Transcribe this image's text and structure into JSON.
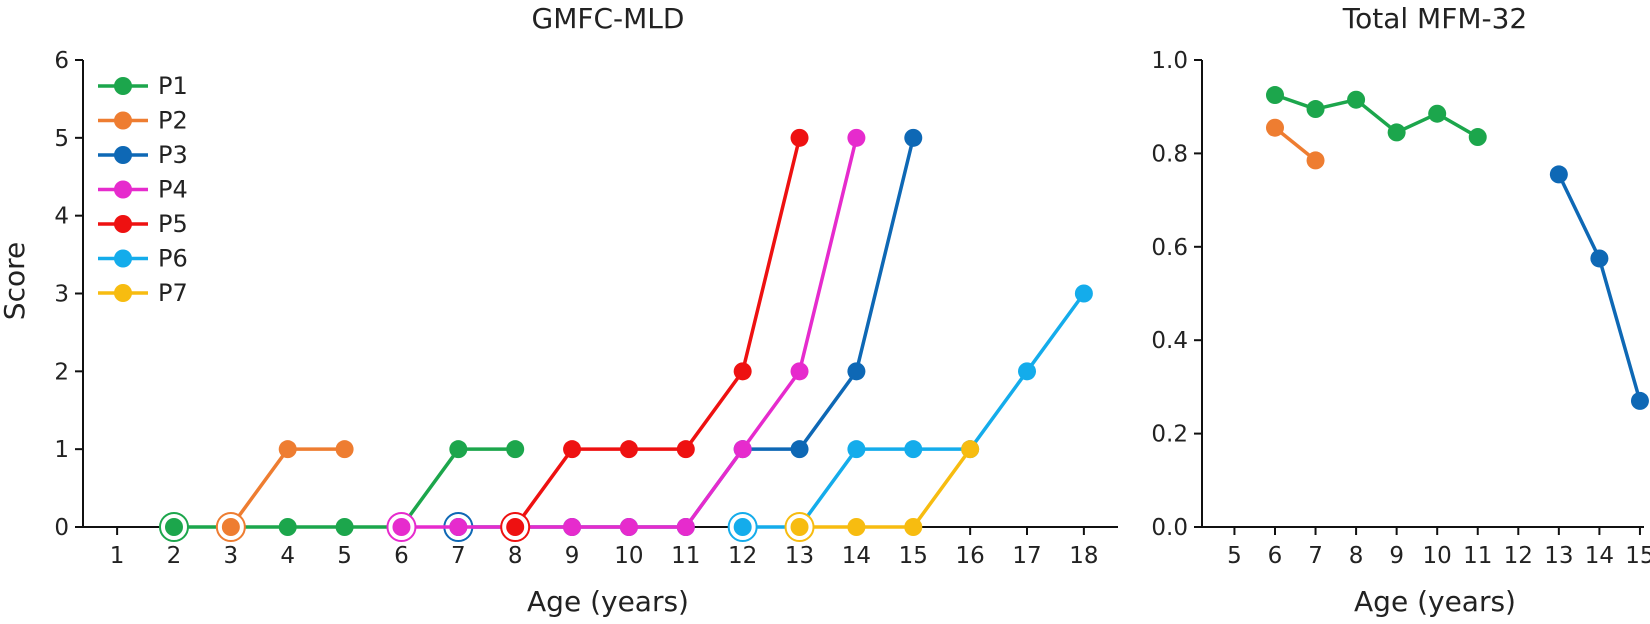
{
  "chart_data": [
    {
      "type": "line",
      "title": "GMFC-MLD",
      "xlabel": "Age (years)",
      "ylabel": "Score",
      "xlim": [
        0.4,
        18.6
      ],
      "ylim": [
        0,
        6
      ],
      "xticks": [
        1,
        2,
        3,
        4,
        5,
        6,
        7,
        8,
        9,
        10,
        11,
        12,
        13,
        14,
        15,
        16,
        17,
        18
      ],
      "yticks": [
        0,
        1,
        2,
        3,
        4,
        5,
        6
      ],
      "legend_position": "top-left",
      "grid": false,
      "series": [
        {
          "name": "P1",
          "color": "#1ca64c",
          "x": [
            2,
            4,
            5,
            6,
            7,
            8
          ],
          "y": [
            0,
            0,
            0,
            0,
            1,
            1
          ],
          "ring": [
            2,
            0
          ]
        },
        {
          "name": "P2",
          "color": "#ee7d31",
          "x": [
            3,
            4,
            5
          ],
          "y": [
            0,
            1,
            1
          ],
          "ring": [
            3,
            0
          ]
        },
        {
          "name": "P3",
          "color": "#0e68b5",
          "x": [
            7,
            8,
            9,
            10,
            11,
            12,
            13,
            14,
            15
          ],
          "y": [
            0,
            0,
            0,
            0,
            0,
            1,
            1,
            2,
            5
          ],
          "ring": [
            7,
            0
          ]
        },
        {
          "name": "P4",
          "color": "#e62bcd",
          "x": [
            6,
            7,
            8,
            9,
            10,
            11,
            12,
            13,
            14
          ],
          "y": [
            0,
            0,
            0,
            0,
            0,
            0,
            1,
            2,
            5
          ],
          "ring": [
            6,
            0
          ]
        },
        {
          "name": "P5",
          "color": "#ee1111",
          "x": [
            8,
            9,
            10,
            11,
            12,
            13
          ],
          "y": [
            0,
            1,
            1,
            1,
            2,
            5
          ],
          "ring": [
            8,
            0
          ]
        },
        {
          "name": "P6",
          "color": "#14aceb",
          "x": [
            12,
            13,
            14,
            15,
            16,
            17,
            18
          ],
          "y": [
            0,
            0,
            1,
            1,
            1,
            2,
            3
          ],
          "ring": [
            12,
            0
          ]
        },
        {
          "name": "P7",
          "color": "#f7bc10",
          "x": [
            13,
            14,
            15,
            16
          ],
          "y": [
            0,
            0,
            0,
            1
          ],
          "ring": [
            13,
            0
          ]
        }
      ]
    },
    {
      "type": "line",
      "title": "Total MFM-32",
      "xlabel": "Age (years)",
      "ylabel": "",
      "xlim": [
        4.2,
        15.1
      ],
      "ylim": [
        0,
        1
      ],
      "xticks": [
        5,
        6,
        7,
        8,
        9,
        10,
        11,
        12,
        13,
        14,
        15
      ],
      "yticks": [
        "0.0",
        "0.2",
        "0.4",
        "0.6",
        "0.8",
        "1.0"
      ],
      "grid": false,
      "series": [
        {
          "color": "#1ca64c",
          "x": [
            6,
            7,
            8,
            9,
            10,
            11
          ],
          "y": [
            0.925,
            0.895,
            0.915,
            0.845,
            0.885,
            0.835
          ]
        },
        {
          "color": "#ee7d31",
          "x": [
            6,
            7
          ],
          "y": [
            0.855,
            0.785
          ]
        },
        {
          "color": "#0e68b5",
          "x": [
            13,
            14,
            15
          ],
          "y": [
            0.755,
            0.575,
            0.27
          ]
        }
      ]
    }
  ]
}
